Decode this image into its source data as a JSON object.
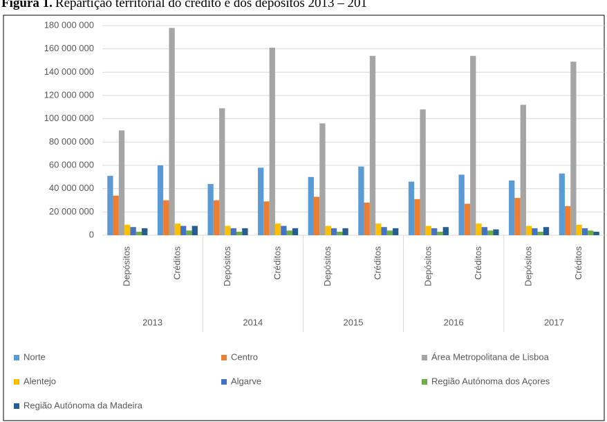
{
  "chart_data": {
    "type": "bar",
    "title_prefix": "Figura 1.",
    "title": "Repartição territorial do crédito e dos depósitos 2013 – 201",
    "categories": [
      "Depósitos",
      "Créditos",
      "Depósitos",
      "Créditos",
      "Depósitos",
      "Créditos",
      "Depósitos",
      "Créditos",
      "Depósitos",
      "Créditos"
    ],
    "groups": [
      "2013",
      "2014",
      "2015",
      "2016",
      "2017"
    ],
    "series": [
      {
        "name": "Norte",
        "color": "#5b9bd5",
        "values": [
          51000000,
          60000000,
          44000000,
          58000000,
          50000000,
          59000000,
          46000000,
          52000000,
          47000000,
          53000000
        ]
      },
      {
        "name": "Centro",
        "color": "#ed7d31",
        "values": [
          34000000,
          30000000,
          30000000,
          29000000,
          33000000,
          28000000,
          31000000,
          27000000,
          32000000,
          25000000
        ]
      },
      {
        "name": "Área Metropolitana de Lisboa",
        "color": "#a5a5a5",
        "values": [
          90000000,
          178000000,
          109000000,
          161000000,
          96000000,
          154000000,
          108000000,
          154000000,
          112000000,
          149000000
        ]
      },
      {
        "name": "Alentejo",
        "color": "#ffc000",
        "values": [
          9000000,
          10000000,
          8000000,
          10000000,
          8000000,
          10000000,
          8000000,
          10000000,
          8000000,
          9000000
        ]
      },
      {
        "name": "Algarve",
        "color": "#4472c4",
        "values": [
          7000000,
          8000000,
          6000000,
          8000000,
          6000000,
          7000000,
          6000000,
          7000000,
          6000000,
          6000000
        ]
      },
      {
        "name": "Região Autónoma dos Açores",
        "color": "#70ad47",
        "values": [
          3000000,
          4000000,
          3000000,
          4000000,
          3000000,
          4000000,
          3000000,
          4000000,
          3000000,
          4000000
        ]
      },
      {
        "name": "Região Autónoma da Madeira",
        "color": "#255e91",
        "values": [
          6000000,
          8000000,
          6000000,
          6000000,
          6000000,
          6000000,
          7000000,
          5000000,
          7000000,
          3000000
        ]
      }
    ],
    "ylim": [
      0,
      180000000
    ],
    "yticks": [
      0,
      {
        "value": 20000000,
        "label": "20 000 000"
      },
      {
        "value": 40000000,
        "label": "40 000 000"
      },
      {
        "value": 60000000,
        "label": "60 000 000"
      },
      {
        "value": 80000000,
        "label": "80 000 000"
      },
      {
        "value": 100000000,
        "label": "100 000 000"
      },
      {
        "value": 120000000,
        "label": "120 000 000"
      },
      {
        "value": 140000000,
        "label": "140 000 000"
      },
      {
        "value": 160000000,
        "label": "160 000 000"
      },
      {
        "value": 180000000,
        "label": "180 000 000"
      }
    ],
    "grid": true
  }
}
